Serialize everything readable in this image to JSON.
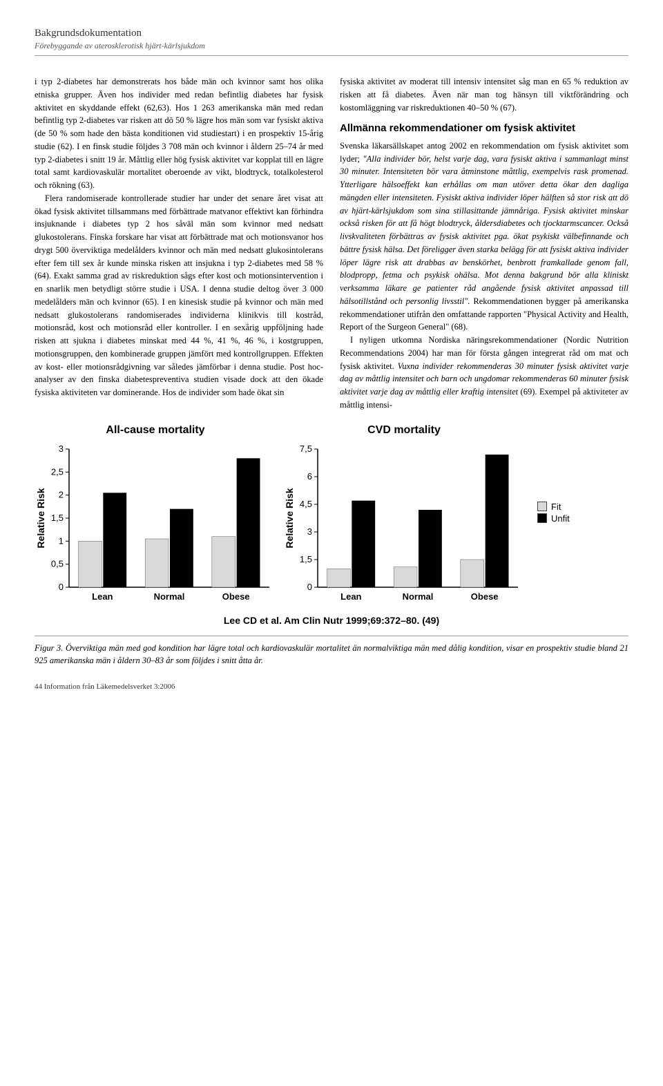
{
  "header": {
    "title": "Bakgrundsdokumentation",
    "subtitle": "Förebyggande av aterosklerotisk hjärt-kärlsjukdom"
  },
  "left_col": {
    "p1": "i typ 2-diabetes har demonstrerats hos både män och kvinnor samt hos olika etniska grupper. Även hos individer med redan befintlig diabetes har fysisk aktivitet en skyddande effekt (62,63). Hos 1 263 amerikanska män med redan befintlig typ 2-diabetes var risken att dö 50 % lägre hos män som var fysiskt aktiva (de 50 % som hade den bästa konditionen vid studiestart) i en prospektiv 15-årig studie (62). I en finsk studie följdes 3 708 män och kvinnor i åldern 25–74 år med typ 2-diabetes i snitt 19 år. Måttlig eller hög fysisk aktivitet var kopplat till en lägre total samt kardiovaskulär mortalitet oberoende av vikt, blodtryck, totalkolesterol och rökning (63).",
    "p2": "Flera randomiserade kontrollerade studier har under det senare året visat att ökad fysisk aktivitet tillsammans med förbättrade matvanor effektivt kan förhindra insjuknande i diabetes typ 2 hos såväl män som kvinnor med nedsatt glukostolerans. Finska forskare har visat att förbättrade mat och motionsvanor hos drygt 500 överviktiga medelålders kvinnor och män med nedsatt glukosintolerans efter fem till sex år kunde minska risken att insjukna i typ 2-diabetes med 58 % (64). Exakt samma grad av riskreduktion sågs efter kost och motionsintervention i en snarlik men betydligt större studie i USA. I denna studie deltog över 3 000 medelålders män och kvinnor (65). I en kinesisk studie på kvinnor och män med nedsatt glukostolerans randomiserades individerna klinikvis till kostråd, motionsråd, kost och motionsråd eller kontroller. I en sexårig uppföljning hade risken att sjukna i diabetes minskat med 44 %, 41 %, 46 %, i kostgruppen, motionsgruppen, den kombinerade gruppen jämfört med kontrollgruppen. Effekten av kost- eller motionsrådgivning var således jämförbar i denna studie. Post hoc-analyser av den finska diabetespreventiva studien visade dock att den ökade fysiska aktiviteten var dominerande. Hos de individer som hade ökat sin"
  },
  "right_col": {
    "p1": "fysiska aktivitet av moderat till intensiv intensitet såg man en 65 % reduktion av risken att få diabetes. Även när man tog hänsyn till viktförändring och kostomläggning var riskreduktionen 40–50 % (67).",
    "section_heading": "Allmänna rekommendationer om fysisk aktivitet",
    "p2a": "Svenska läkarsällskapet antog 2002 en rekommendation om fysisk aktivitet som lyder; ",
    "p2b": "\"Alla individer bör, helst varje dag, vara fysiskt aktiva i sammanlagt minst 30 minuter. Intensiteten bör vara åtminstone måttlig, exempelvis rask promenad. Ytterligare hälsoeffekt kan erhållas om man utöver detta ökar den dagliga mängden eller intensiteten. Fysiskt aktiva individer löper hälften så stor risk att dö av hjärt-kärlsjukdom som sina stillasittande jämnåriga. Fysisk aktivitet minskar också risken för att få högt blodtryck, åldersdiabetes och tjocktarmscancer. Också livskvaliteten förbättras av fysisk aktivitet pga. ökat psykiskt välbefinnande och bättre fysisk hälsa. Det föreligger även starka belägg för att fysiskt aktiva individer löper lägre risk att drabbas av benskörhet, benbrott framkallade genom fall, blodpropp, fetma och psykisk ohälsa. Mot denna bakgrund bör alla kliniskt verksamma läkare ge patienter råd angående fysisk aktivitet anpassad till hälsotillstånd och personlig livsstil\". ",
    "p2c": "Rekommendationen bygger på amerikanska rekommendationer utifrån den omfattande rapporten \"Physical Activity and Health, Report of the Surgeon General\" (68).",
    "p3a": "I nyligen utkomna Nordiska näringsrekommendationer (Nordic Nutrition Recommendations 2004) har man för första gången integrerat råd om mat och fysisk aktivitet. ",
    "p3b": "Vuxna individer rekommenderas 30 minuter fysisk aktivitet varje dag av måttlig intensitet och barn och ungdomar rekommenderas 60 minuter fysisk aktivitet varje dag av måttlig eller kraftig intensitet",
    "p3c": " (69). Exempel på aktiviteter av måttlig intensi-"
  },
  "chart_left": {
    "title": "All-cause mortality",
    "type": "bar",
    "ylabel": "Relative Risk",
    "categories": [
      "Lean",
      "Normal",
      "Obese"
    ],
    "fit_values": [
      1.0,
      1.05,
      1.1
    ],
    "unfit_values": [
      2.05,
      1.7,
      2.8
    ],
    "fit_color": "#d9d9d9",
    "unfit_color": "#000000",
    "ylim": [
      0,
      3
    ],
    "ytick_step": 0.5,
    "background_color": "#ffffff",
    "axis_color": "#000000",
    "label_fontsize": 13,
    "title_fontsize": 16,
    "bar_width": 0.35
  },
  "chart_right": {
    "title": "CVD mortality",
    "type": "bar",
    "ylabel": "Relative Risk",
    "categories": [
      "Lean",
      "Normal",
      "Obese"
    ],
    "fit_values": [
      1.0,
      1.1,
      1.5
    ],
    "unfit_values": [
      4.7,
      4.2,
      7.2
    ],
    "fit_color": "#d9d9d9",
    "unfit_color": "#000000",
    "ylim": [
      0,
      7.5
    ],
    "ytick_step": 1.5,
    "background_color": "#ffffff",
    "axis_color": "#000000",
    "label_fontsize": 13,
    "title_fontsize": 16,
    "bar_width": 0.35
  },
  "legend": {
    "fit_label": "Fit",
    "unfit_label": "Unfit",
    "fit_color": "#d9d9d9",
    "unfit_color": "#000000"
  },
  "chart_citation": "Lee CD et al. Am Clin Nutr 1999;69:372–80. (49)",
  "figure_caption": "Figur 3. Överviktiga män med god kondition har lägre total och kardiovaskulär mortalitet än normalviktiga män med dålig kondition, visar en prospektiv studie bland 21 925 amerikanska män i åldern 30–83 år som följdes i snitt åtta år.",
  "footer": "44    Information från Läkemedelsverket 3:2006"
}
